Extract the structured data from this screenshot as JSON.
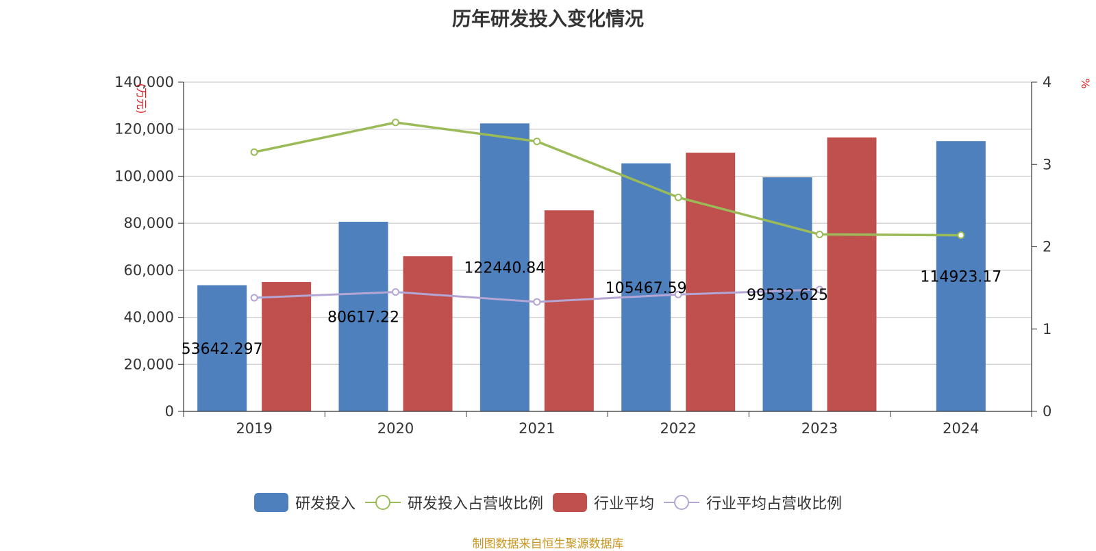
{
  "chart_data": {
    "type": "bar",
    "title": "历年研发投入变化情况",
    "categories": [
      "2019",
      "2020",
      "2021",
      "2022",
      "2023",
      "2024"
    ],
    "y_left": {
      "unit": "(万元)",
      "ylim": [
        0,
        140000
      ],
      "ticks": [
        "0",
        "20,000",
        "40,000",
        "60,000",
        "80,000",
        "100,000",
        "120,000",
        "140,000"
      ]
    },
    "y_right": {
      "unit": "%",
      "ylim": [
        0,
        4
      ],
      "ticks": [
        "0",
        "1",
        "2",
        "3",
        "4"
      ]
    },
    "series": [
      {
        "name": "研发投入",
        "type": "bar",
        "axis": "left",
        "color": "#4e80bd",
        "values": [
          53642.297,
          80617.22,
          122440.84,
          105467.59,
          99532.625,
          114923.17
        ],
        "labels": [
          "53642.297",
          "80617.22",
          "122440.84",
          "105467.59",
          "99532.625",
          "114923.17"
        ]
      },
      {
        "name": "研发投入占营收比例",
        "type": "line",
        "axis": "right",
        "color": "#9bbb59",
        "values": [
          3.15,
          3.51,
          3.28,
          2.6,
          2.15,
          2.14
        ]
      },
      {
        "name": "行业平均",
        "type": "bar",
        "axis": "left",
        "color": "#c0504d",
        "values": [
          55000,
          66000,
          85500,
          110000,
          116500,
          null
        ]
      },
      {
        "name": "行业平均占营收比例",
        "type": "line",
        "axis": "right",
        "color": "#b3a6d4",
        "values": [
          1.38,
          1.45,
          1.33,
          1.42,
          1.48,
          null
        ]
      }
    ],
    "grid": true,
    "legend_position": "bottom"
  },
  "source": "制图数据来自恒生聚源数据库"
}
